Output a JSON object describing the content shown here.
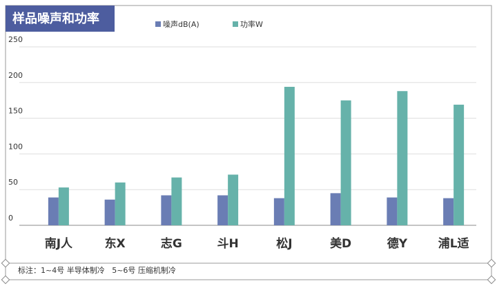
{
  "chart_data": {
    "type": "bar",
    "title": "样品噪声和功率",
    "categories": [
      "南J人",
      "东X",
      "志G",
      "斗H",
      "松J",
      "美D",
      "德Y",
      "浦L适"
    ],
    "series": [
      {
        "name": "噪声dB(A)",
        "color": "#6a7db4",
        "values": [
          39,
          36,
          42,
          42,
          38,
          45,
          39,
          38
        ]
      },
      {
        "name": "功率W",
        "color": "#66b2aa",
        "values": [
          53,
          60,
          67,
          71,
          194,
          175,
          188,
          169
        ]
      }
    ],
    "ylim": [
      0,
      250
    ],
    "yticks": [
      0,
      50,
      100,
      150,
      200,
      250
    ],
    "grid": true,
    "note": "标注：1~4号 半导体制冷   5~6号 压缩机制冷"
  }
}
